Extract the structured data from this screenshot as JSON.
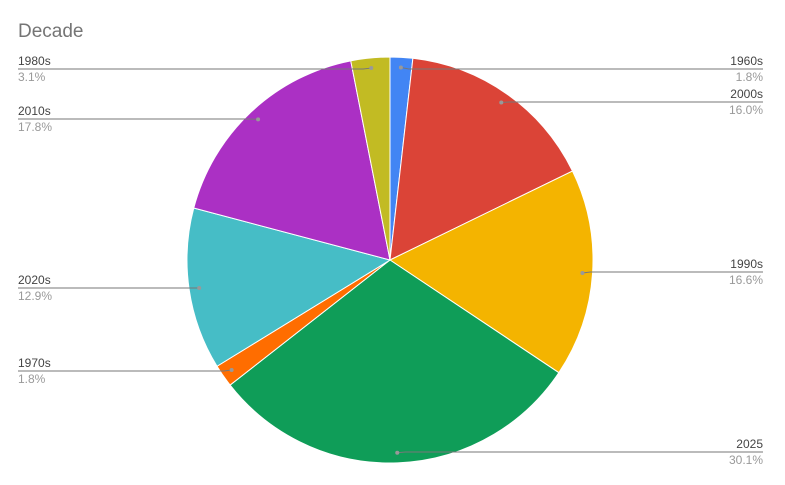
{
  "chart_data": {
    "type": "pie",
    "title": "Decade",
    "slices": [
      {
        "label": "1960s",
        "value": 1.8,
        "pct_label": "1.8%",
        "color": "#4285f4"
      },
      {
        "label": "2000s",
        "value": 16.0,
        "pct_label": "16.0%",
        "color": "#db4437"
      },
      {
        "label": "1990s",
        "value": 16.6,
        "pct_label": "16.6%",
        "color": "#f4b400"
      },
      {
        "label": "2025",
        "value": 30.1,
        "pct_label": "30.1%",
        "color": "#0f9d58"
      },
      {
        "label": "1970s",
        "value": 1.8,
        "pct_label": "1.8%",
        "color": "#ff6d00"
      },
      {
        "label": "2020s",
        "value": 12.9,
        "pct_label": "12.9%",
        "color": "#46bdc6"
      },
      {
        "label": "2010s",
        "value": 17.8,
        "pct_label": "17.8%",
        "color": "#ab30c4"
      },
      {
        "label": "1980s",
        "value": 3.1,
        "pct_label": "3.1%",
        "color": "#c2bb23"
      }
    ],
    "start_angle": "top",
    "direction": "clockwise",
    "legend": "labeled leader lines"
  }
}
